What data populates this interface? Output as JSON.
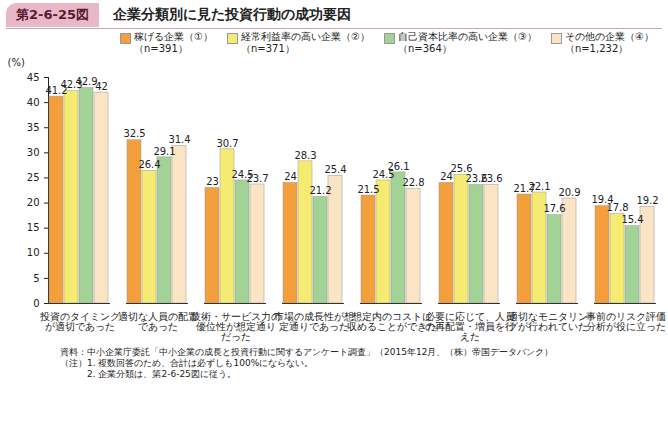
{
  "chart_data": {
    "type": "bar",
    "figure_number": "第2-6-25図",
    "title": "企業分類別に見た投資行動の成功要因",
    "y_label": "(%)",
    "categories": [
      "投資のタイミング\nが適切であった",
      "適切な人員の配置\nであった",
      "技術・サービス力の\n優位性が想定通り\nだった",
      "市場の成長性が想\n定通りであった",
      "想定内のコストに\n収めることができた",
      "必要に応じて、人員\nの再配置・増員を行\nえた",
      "適切なモニタリン\nグが行われていた",
      "事前のリスク評価\n分析が役に立った"
    ],
    "series": [
      {
        "name": "稼げる企業（①）\n（n=391）",
        "color": "#f3a03c",
        "values": [
          41.2,
          32.5,
          23.0,
          24.0,
          21.5,
          24.0,
          21.7,
          19.4
        ]
      },
      {
        "name": "経常利益率の高い企業（②）\n（n=371）",
        "color": "#f6eb72",
        "values": [
          42.3,
          26.4,
          30.7,
          28.3,
          24.5,
          25.6,
          22.1,
          17.8
        ]
      },
      {
        "name": "自己資本比率の高い企業（③）\n（n=364）",
        "color": "#a3d296",
        "values": [
          42.9,
          29.1,
          24.5,
          21.2,
          26.1,
          23.6,
          17.6,
          15.4
        ]
      },
      {
        "name": "その他の企業（④）\n（n=1,232）",
        "color": "#fbe4c4",
        "values": [
          42.0,
          31.4,
          23.7,
          25.4,
          22.8,
          23.6,
          20.9,
          19.2
        ]
      }
    ],
    "ylim": [
      0,
      45
    ],
    "yticks": [
      0,
      5,
      10,
      15,
      20,
      25,
      30,
      35,
      40,
      45
    ],
    "grid": false,
    "data_labels": true,
    "source": "資料：中小企業庁委託「中小企業の成長と投資行動に関するアンケート調査」（2015年12月、（株）帝国データバンク）",
    "notes": [
      "（注）1. 複数回答のため、合計は必ずしも100%にならない。",
      "2. 企業分類は、第2-6-25図に従う。"
    ]
  }
}
